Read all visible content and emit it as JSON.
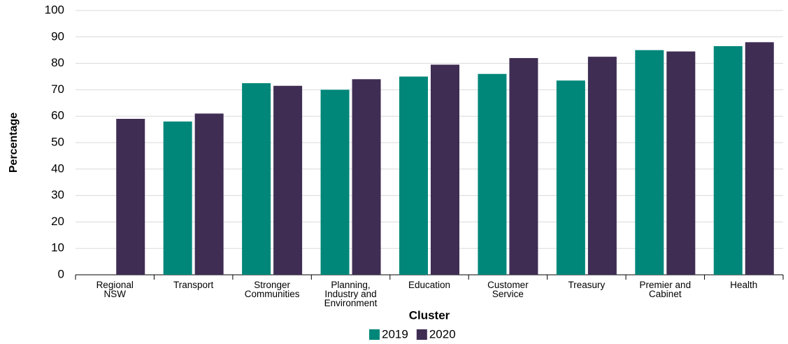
{
  "chart_data": {
    "type": "bar",
    "x_label": "Cluster",
    "y_label": "Percentage",
    "categories": [
      "Regional NSW",
      "Transport",
      "Stronger Communities",
      "Planning, Industry and Environment",
      "Education",
      "Customer Service",
      "Treasury",
      "Premier and Cabinet",
      "Health"
    ],
    "series": [
      {
        "name": "2019",
        "color": "#00877a",
        "values": [
          null,
          58,
          72.5,
          70,
          75,
          76,
          73.5,
          85,
          86.5
        ]
      },
      {
        "name": "2020",
        "color": "#3f2d54",
        "values": [
          59,
          61,
          71.5,
          74,
          79.5,
          82,
          82.5,
          84.5,
          88
        ]
      }
    ],
    "ylim": [
      0,
      100
    ],
    "yticks": [
      0,
      10,
      20,
      30,
      40,
      50,
      60,
      70,
      80,
      90,
      100
    ],
    "grid": true,
    "legend": "bottom"
  }
}
